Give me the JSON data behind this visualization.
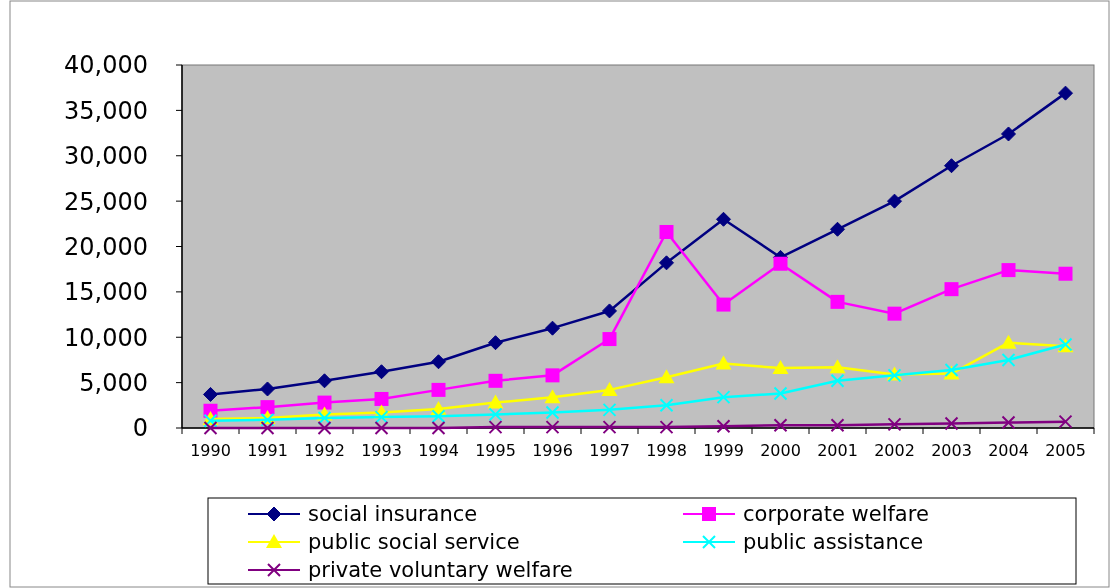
{
  "chart_data": {
    "type": "line",
    "categories": [
      "1990",
      "1991",
      "1992",
      "1993",
      "1994",
      "1995",
      "1996",
      "1997",
      "1998",
      "1999",
      "2000",
      "2001",
      "2002",
      "2003",
      "2004",
      "2005"
    ],
    "ylim": [
      0,
      40000
    ],
    "yticks": [
      {
        "value": 0,
        "label": "0"
      },
      {
        "value": 5000,
        "label": "5,000"
      },
      {
        "value": 10000,
        "label": "10,000"
      },
      {
        "value": 15000,
        "label": "15,000"
      },
      {
        "value": 20000,
        "label": "20,000"
      },
      {
        "value": 25000,
        "label": "25,000"
      },
      {
        "value": 30000,
        "label": "30,000"
      },
      {
        "value": 35000,
        "label": "35,000"
      },
      {
        "value": 40000,
        "label": "40,000"
      }
    ],
    "legend": "bottom",
    "grid": false,
    "series": [
      {
        "name": "social insurance",
        "color": "#000080",
        "marker": "diamond",
        "values": [
          3700,
          4300,
          5200,
          6200,
          7300,
          9400,
          11000,
          12900,
          18200,
          23000,
          18800,
          21900,
          25000,
          28900,
          32400,
          36900
        ]
      },
      {
        "name": "corporate welfare",
        "color": "#ff00ff",
        "marker": "square",
        "values": [
          1900,
          2300,
          2800,
          3200,
          4200,
          5200,
          5800,
          9800,
          21600,
          13600,
          18100,
          13900,
          12600,
          15300,
          17400,
          17000
        ]
      },
      {
        "name": "public social service",
        "color": "#ffff00",
        "marker": "triangle",
        "values": [
          1000,
          1100,
          1500,
          1700,
          2100,
          2800,
          3400,
          4200,
          5600,
          7100,
          6600,
          6700,
          5900,
          6000,
          9400,
          9000
        ]
      },
      {
        "name": "public assistance",
        "color": "#00ffff",
        "marker": "cross",
        "values": [
          800,
          900,
          1100,
          1200,
          1300,
          1500,
          1700,
          2000,
          2500,
          3400,
          3800,
          5200,
          5800,
          6400,
          7500,
          9200
        ]
      },
      {
        "name": "private voluntary welfare",
        "color": "#800080",
        "marker": "cross",
        "values": [
          0,
          0,
          0,
          0,
          0,
          100,
          100,
          100,
          100,
          200,
          300,
          300,
          400,
          500,
          600,
          700
        ]
      }
    ]
  }
}
